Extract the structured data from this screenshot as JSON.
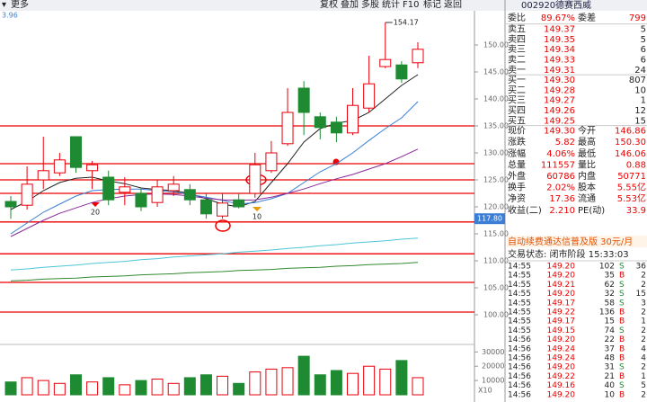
{
  "toolbar": {
    "menu": "更多",
    "menu_value": "3.96",
    "buttons": [
      "复权",
      "叠加",
      "多股",
      "统计",
      "F10",
      "标记",
      "返回"
    ]
  },
  "chart_data": {
    "type": "candlestick",
    "up_color": "#e8000b",
    "down_color": "#1e8a32",
    "open": [
      121,
      120.3,
      125,
      126.3,
      133,
      126.7,
      125.5,
      122.7,
      122.5,
      120.8,
      123,
      123.2,
      121.3,
      118.3,
      121.3,
      122.5,
      126.7,
      131.7,
      142,
      136.7,
      135.7,
      133.7,
      138.3,
      146,
      146.3,
      146.7
    ],
    "close": [
      120,
      124.2,
      126.7,
      128.7,
      127.3,
      127.8,
      121.3,
      123.7,
      120,
      123.7,
      124.2,
      121.3,
      118.7,
      120.7,
      120,
      127.8,
      130,
      137.5,
      137.5,
      134.7,
      133.7,
      138.8,
      142.8,
      147.3,
      143.7,
      149.2
    ],
    "high": [
      122,
      127.5,
      133,
      130,
      133,
      128.5,
      126.7,
      125.5,
      123.3,
      125,
      125.7,
      124.2,
      122.5,
      122.5,
      122.5,
      130,
      132.2,
      142,
      143.3,
      137.5,
      136.7,
      142,
      148,
      154.17,
      147,
      150.5
    ],
    "low": [
      117.8,
      119.5,
      123.3,
      125.7,
      126.3,
      123.3,
      120.3,
      120.3,
      119.2,
      120,
      122,
      120.3,
      117.8,
      117.8,
      119.7,
      121.7,
      126.3,
      131.3,
      133.3,
      132.5,
      132,
      133.3,
      137.5,
      145.7,
      143,
      145.7
    ],
    "ma_lines": [
      {
        "name": "MA5",
        "color": "#222222",
        "values": [
          119.5,
          121,
          123,
          124.5,
          125.3,
          125.5,
          124.8,
          124.3,
          123.5,
          123.2,
          123,
          122.5,
          121.5,
          120.5,
          120,
          121,
          124.5,
          128,
          132,
          134.5,
          135.5,
          136,
          137.5,
          140,
          142.5,
          144.5
        ]
      },
      {
        "name": "MA10",
        "color": "#3a7fd5",
        "values": [
          115,
          117,
          119,
          120.5,
          122,
          123,
          123.2,
          123.3,
          123.3,
          123,
          122.8,
          122.3,
          121.8,
          121.2,
          120.5,
          120.8,
          121.5,
          122.5,
          124.5,
          126.5,
          128,
          130,
          132.3,
          134.5,
          136.5,
          139.5
        ]
      },
      {
        "name": "MA20",
        "color": "#8a2a9a",
        "values": [
          114.5,
          116,
          117.5,
          118.8,
          119.8,
          120.8,
          121.5,
          122,
          122.3,
          122.4,
          122.3,
          122,
          121.6,
          121.3,
          121.2,
          121.3,
          121.8,
          122.5,
          123.3,
          124.3,
          125.2,
          126,
          127,
          128,
          129.3,
          130.7
        ]
      },
      {
        "name": "MA60",
        "color": "#4cc6d8",
        "values": [
          108.3,
          108.5,
          108.8,
          109,
          109.2,
          109.5,
          109.7,
          109.9,
          110.2,
          110.4,
          110.7,
          110.9,
          111.1,
          111.3,
          111.6,
          111.8,
          112,
          112.3,
          112.5,
          112.8,
          113,
          113.3,
          113.5,
          113.7,
          114,
          114.2
        ]
      },
      {
        "name": "MA120",
        "color": "#2f8a2f",
        "values": [
          106.3,
          106.4,
          106.6,
          106.7,
          106.8,
          107,
          107.1,
          107.2,
          107.4,
          107.5,
          107.6,
          107.8,
          107.9,
          108,
          108.2,
          108.3,
          108.4,
          108.6,
          108.7,
          108.8,
          109,
          109.1,
          109.3,
          109.4,
          109.5,
          109.7
        ]
      }
    ],
    "levels": [
      135,
      128,
      125,
      122.5,
      117.2,
      111.3,
      106,
      100.5
    ],
    "ylim": [
      95,
      156
    ],
    "yticks": [
      {
        "value": 100,
        "label": "100.00"
      },
      {
        "value": 105,
        "label": "105.00"
      },
      {
        "value": 110,
        "label": "110.00"
      },
      {
        "value": 115,
        "label": "115.00"
      },
      {
        "value": 120,
        "label": "120.00"
      },
      {
        "value": 125,
        "label": "125.00"
      },
      {
        "value": 130,
        "label": "130.00"
      },
      {
        "value": 135,
        "label": "135.00"
      },
      {
        "value": 140,
        "label": "140.00"
      },
      {
        "value": 145,
        "label": "145.00"
      },
      {
        "value": 150,
        "label": "150.00"
      }
    ],
    "high_label": 154.17,
    "last_price": {
      "value": 117.8,
      "label": "117.80"
    },
    "cycle_labels": [
      "20",
      "10"
    ],
    "volume": {
      "values": [
        9000,
        12000,
        10000,
        8000,
        14000,
        9000,
        12000,
        7000,
        10000,
        11000,
        8000,
        12000,
        14000,
        13000,
        8000,
        16000,
        18000,
        19000,
        27000,
        14000,
        17000,
        15000,
        20000,
        18000,
        24000,
        12000
      ],
      "ylim": [
        0,
        34000
      ],
      "yticks": [
        10000,
        20000,
        30000
      ],
      "unit": "X10"
    }
  },
  "quote": {
    "code": "002920",
    "name": "德赛西威",
    "ratio": [
      "委比",
      "89.67%",
      "委差",
      "799"
    ],
    "sells": [
      [
        "卖五",
        "149.37",
        "5"
      ],
      [
        "卖四",
        "149.35",
        "5"
      ],
      [
        "卖三",
        "149.34",
        "6"
      ],
      [
        "卖二",
        "149.33",
        "6"
      ],
      [
        "卖一",
        "149.31",
        "24"
      ]
    ],
    "buys": [
      [
        "买一",
        "149.30",
        "807"
      ],
      [
        "买二",
        "149.28",
        "10"
      ],
      [
        "买三",
        "149.27",
        "1"
      ],
      [
        "买四",
        "149.26",
        "12"
      ],
      [
        "买五",
        "149.25",
        "15"
      ]
    ],
    "stats": [
      [
        "现价",
        "149.30",
        "今开",
        "146.86"
      ],
      [
        "涨跌",
        "5.82",
        "最高",
        "150.30"
      ],
      [
        "涨幅",
        "4.06%",
        "最低",
        "146.06"
      ],
      [
        "总量",
        "111557",
        "量比",
        "0.88"
      ],
      [
        "外盘",
        "60786",
        "内盘",
        "50771"
      ],
      [
        "换手",
        "2.02%",
        "股本",
        "5.55亿"
      ],
      [
        "净资",
        "17.36",
        "流通",
        "5.53亿"
      ],
      [
        "收益(二)",
        "2.210",
        "PE(动)",
        "33.9"
      ]
    ],
    "banner": "自动续费通达信普及版  30元/月",
    "status": "交易状态: 闭市阶段 15:33:03"
  },
  "ticks": [
    [
      "14:55",
      "149.20",
      "102",
      "S",
      "36"
    ],
    [
      "14:55",
      "149.20",
      "35",
      "B",
      "2"
    ],
    [
      "14:55",
      "149.21",
      "62",
      "S",
      "2"
    ],
    [
      "14:55",
      "149.20",
      "32",
      "S",
      "15"
    ],
    [
      "14:55",
      "149.17",
      "58",
      "S",
      "3"
    ],
    [
      "14:55",
      "149.22",
      "136",
      "B",
      "2"
    ],
    [
      "14:55",
      "149.17",
      "15",
      "B",
      "1"
    ],
    [
      "14:55",
      "149.15",
      "74",
      "S",
      "2"
    ],
    [
      "14:56",
      "149.20",
      "22",
      "B",
      "2"
    ],
    [
      "14:56",
      "149.24",
      "37",
      "B",
      "4"
    ],
    [
      "14:56",
      "149.24",
      "48",
      "B",
      "4"
    ],
    [
      "14:56",
      "149.20",
      "31",
      "S",
      "2"
    ],
    [
      "14:56",
      "149.22",
      "21",
      "B",
      "1"
    ],
    [
      "14:56",
      "149.16",
      "40",
      "S",
      "5"
    ],
    [
      "14:56",
      "149.20",
      "10",
      "B",
      "2"
    ]
  ]
}
